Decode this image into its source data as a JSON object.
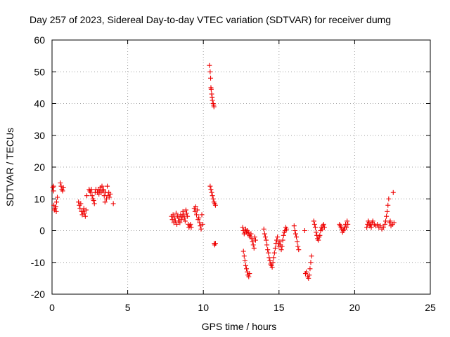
{
  "chart_data": {
    "type": "scatter",
    "title": "Day 257 of 2023, Sidereal Day-to-day VTEC variation (SDTVAR) for receiver dumg",
    "xlabel": "GPS time / hours",
    "ylabel": "SDTVAR / TECUs",
    "xlim": [
      0,
      25
    ],
    "ylim": [
      -20,
      60
    ],
    "xticks": [
      0,
      5,
      10,
      15,
      20,
      25
    ],
    "yticks": [
      -20,
      -10,
      0,
      10,
      20,
      30,
      40,
      50,
      60
    ],
    "grid": true,
    "marker": "+",
    "color": "#ee0000",
    "series": [
      {
        "name": "SDTVAR",
        "points": [
          [
            0.05,
            13.5
          ],
          [
            0.1,
            14
          ],
          [
            0.1,
            12.5
          ],
          [
            0.12,
            8
          ],
          [
            0.15,
            6.5
          ],
          [
            0.2,
            7
          ],
          [
            0.25,
            7.5
          ],
          [
            0.28,
            6
          ],
          [
            0.3,
            9
          ],
          [
            0.35,
            10.5
          ],
          [
            0.55,
            15
          ],
          [
            0.6,
            14
          ],
          [
            0.65,
            13
          ],
          [
            0.7,
            12.5
          ],
          [
            0.75,
            13.5
          ],
          [
            1.75,
            9
          ],
          [
            1.8,
            8
          ],
          [
            1.85,
            7
          ],
          [
            1.9,
            8.5
          ],
          [
            1.95,
            6
          ],
          [
            2.0,
            5
          ],
          [
            2.05,
            6
          ],
          [
            2.1,
            7
          ],
          [
            2.15,
            5.5
          ],
          [
            2.2,
            4.5
          ],
          [
            2.25,
            6.5
          ],
          [
            2.3,
            11
          ],
          [
            2.45,
            13
          ],
          [
            2.5,
            12.5
          ],
          [
            2.55,
            12
          ],
          [
            2.6,
            13
          ],
          [
            2.65,
            11
          ],
          [
            2.7,
            10
          ],
          [
            2.75,
            9.5
          ],
          [
            2.8,
            8.5
          ],
          [
            2.85,
            12
          ],
          [
            2.9,
            13
          ],
          [
            3.0,
            12
          ],
          [
            3.05,
            13
          ],
          [
            3.1,
            11.5
          ],
          [
            3.15,
            12.5
          ],
          [
            3.2,
            13.5
          ],
          [
            3.25,
            12
          ],
          [
            3.3,
            14
          ],
          [
            3.35,
            12.5
          ],
          [
            3.4,
            13
          ],
          [
            3.45,
            11
          ],
          [
            3.5,
            9
          ],
          [
            3.55,
            12
          ],
          [
            3.6,
            10
          ],
          [
            3.65,
            14
          ],
          [
            3.7,
            11
          ],
          [
            3.75,
            12
          ],
          [
            3.8,
            10.5
          ],
          [
            3.85,
            11.5
          ],
          [
            4.05,
            8.5
          ],
          [
            7.9,
            4.5
          ],
          [
            7.95,
            3.5
          ],
          [
            8.0,
            5
          ],
          [
            8.05,
            2.5
          ],
          [
            8.1,
            4
          ],
          [
            8.15,
            3
          ],
          [
            8.2,
            5.5
          ],
          [
            8.25,
            2
          ],
          [
            8.3,
            4.5
          ],
          [
            8.35,
            3
          ],
          [
            8.4,
            4
          ],
          [
            8.45,
            2.5
          ],
          [
            8.5,
            5
          ],
          [
            8.55,
            3.5
          ],
          [
            8.6,
            4.5
          ],
          [
            8.65,
            6
          ],
          [
            8.7,
            5
          ],
          [
            8.75,
            4
          ],
          [
            8.8,
            3
          ],
          [
            8.85,
            6.5
          ],
          [
            8.9,
            5.5
          ],
          [
            8.95,
            4.5
          ],
          [
            9.0,
            2
          ],
          [
            9.05,
            1
          ],
          [
            9.1,
            1.5
          ],
          [
            9.15,
            2
          ],
          [
            9.2,
            1
          ],
          [
            9.4,
            7
          ],
          [
            9.45,
            6
          ],
          [
            9.5,
            7.5
          ],
          [
            9.55,
            5
          ],
          [
            9.6,
            6.5
          ],
          [
            9.65,
            3.5
          ],
          [
            9.7,
            4
          ],
          [
            9.75,
            2.5
          ],
          [
            9.8,
            1.5
          ],
          [
            9.85,
            0.5
          ],
          [
            9.9,
            5
          ],
          [
            9.95,
            2
          ],
          [
            10.4,
            52
          ],
          [
            10.45,
            50
          ],
          [
            10.48,
            48
          ],
          [
            10.5,
            45
          ],
          [
            10.52,
            44.5
          ],
          [
            10.55,
            43
          ],
          [
            10.58,
            42
          ],
          [
            10.6,
            41
          ],
          [
            10.65,
            40
          ],
          [
            10.68,
            39.5
          ],
          [
            10.7,
            39
          ],
          [
            10.45,
            14
          ],
          [
            10.5,
            13
          ],
          [
            10.55,
            12
          ],
          [
            10.6,
            11
          ],
          [
            10.65,
            10
          ],
          [
            10.7,
            9
          ],
          [
            10.75,
            8.5
          ],
          [
            10.8,
            8
          ],
          [
            10.72,
            -4
          ],
          [
            10.75,
            -4.5
          ],
          [
            10.8,
            -4
          ],
          [
            12.6,
            1
          ],
          [
            12.65,
            0
          ],
          [
            12.7,
            -1
          ],
          [
            12.75,
            -0.5
          ],
          [
            12.8,
            0.5
          ],
          [
            12.85,
            -0.5
          ],
          [
            12.9,
            0
          ],
          [
            12.95,
            -1
          ],
          [
            13.0,
            -0.5
          ],
          [
            13.05,
            -1.5
          ],
          [
            13.1,
            -2
          ],
          [
            13.15,
            -1
          ],
          [
            13.2,
            -2.5
          ],
          [
            13.25,
            -3.5
          ],
          [
            13.3,
            -4.5
          ],
          [
            13.35,
            -5.5
          ],
          [
            13.4,
            -2
          ],
          [
            13.45,
            -3
          ],
          [
            12.65,
            -6.5
          ],
          [
            12.7,
            -8
          ],
          [
            12.75,
            -9.5
          ],
          [
            12.8,
            -11
          ],
          [
            12.85,
            -12
          ],
          [
            12.9,
            -13
          ],
          [
            12.95,
            -14
          ],
          [
            13.0,
            -14.5
          ],
          [
            13.05,
            -13.5
          ],
          [
            14.0,
            0.5
          ],
          [
            14.05,
            -1
          ],
          [
            14.1,
            -2
          ],
          [
            14.15,
            -3
          ],
          [
            14.2,
            -4.5
          ],
          [
            14.25,
            -6
          ],
          [
            14.3,
            -7
          ],
          [
            14.35,
            -8.5
          ],
          [
            14.4,
            -9.5
          ],
          [
            14.45,
            -10.5
          ],
          [
            14.5,
            -11
          ],
          [
            14.55,
            -11.5
          ],
          [
            14.6,
            -10
          ],
          [
            14.65,
            -8.5
          ],
          [
            14.7,
            -7
          ],
          [
            14.75,
            -5.5
          ],
          [
            14.8,
            -4
          ],
          [
            14.85,
            -3
          ],
          [
            14.9,
            -2
          ],
          [
            14.95,
            -4
          ],
          [
            15.0,
            -5
          ],
          [
            15.05,
            -3.5
          ],
          [
            15.1,
            -4.5
          ],
          [
            15.15,
            -6
          ],
          [
            15.2,
            -5
          ],
          [
            15.25,
            -3
          ],
          [
            15.3,
            -1.5
          ],
          [
            15.35,
            -0.5
          ],
          [
            15.4,
            0
          ],
          [
            15.45,
            1
          ],
          [
            15.5,
            0.5
          ],
          [
            16.0,
            1.5
          ],
          [
            16.05,
            0
          ],
          [
            16.1,
            -1
          ],
          [
            16.15,
            -2
          ],
          [
            16.2,
            -3.5
          ],
          [
            16.25,
            -5
          ],
          [
            16.3,
            -6
          ],
          [
            16.7,
            0
          ],
          [
            16.75,
            -13.5
          ],
          [
            16.8,
            -13
          ],
          [
            16.9,
            -14.5
          ],
          [
            16.95,
            -15
          ],
          [
            17.0,
            -14
          ],
          [
            17.05,
            -12
          ],
          [
            17.1,
            -10
          ],
          [
            17.15,
            -8
          ],
          [
            17.3,
            3
          ],
          [
            17.35,
            2
          ],
          [
            17.4,
            1
          ],
          [
            17.45,
            -0.5
          ],
          [
            17.5,
            -1.5
          ],
          [
            17.55,
            -2.5
          ],
          [
            17.6,
            -3
          ],
          [
            17.65,
            -2
          ],
          [
            17.7,
            -1.5
          ],
          [
            17.75,
            0
          ],
          [
            17.8,
            1
          ],
          [
            17.85,
            0.5
          ],
          [
            17.9,
            1.5
          ],
          [
            17.95,
            2
          ],
          [
            18.0,
            1
          ],
          [
            19.0,
            2
          ],
          [
            19.05,
            1.5
          ],
          [
            19.1,
            1
          ],
          [
            19.15,
            0.5
          ],
          [
            19.2,
            -0.5
          ],
          [
            19.25,
            0
          ],
          [
            19.3,
            1
          ],
          [
            19.35,
            0.5
          ],
          [
            19.4,
            2
          ],
          [
            19.45,
            1
          ],
          [
            19.5,
            3
          ],
          [
            19.55,
            2
          ],
          [
            20.8,
            1
          ],
          [
            20.85,
            2
          ],
          [
            20.9,
            3
          ],
          [
            20.95,
            2.5
          ],
          [
            21.0,
            1.5
          ],
          [
            21.05,
            2
          ],
          [
            21.1,
            1
          ],
          [
            21.15,
            2.5
          ],
          [
            21.2,
            3
          ],
          [
            21.3,
            2
          ],
          [
            21.4,
            1.5
          ],
          [
            21.5,
            2
          ],
          [
            21.6,
            1
          ],
          [
            21.7,
            1.5
          ],
          [
            21.8,
            0.5
          ],
          [
            21.9,
            1
          ],
          [
            22.0,
            2
          ],
          [
            22.05,
            3
          ],
          [
            22.1,
            4.5
          ],
          [
            22.15,
            6
          ],
          [
            22.2,
            8
          ],
          [
            22.25,
            10
          ],
          [
            22.3,
            2.5
          ],
          [
            22.35,
            3
          ],
          [
            22.4,
            1.5
          ],
          [
            22.5,
            2
          ],
          [
            22.55,
            12
          ],
          [
            22.6,
            2.5
          ]
        ]
      }
    ]
  }
}
